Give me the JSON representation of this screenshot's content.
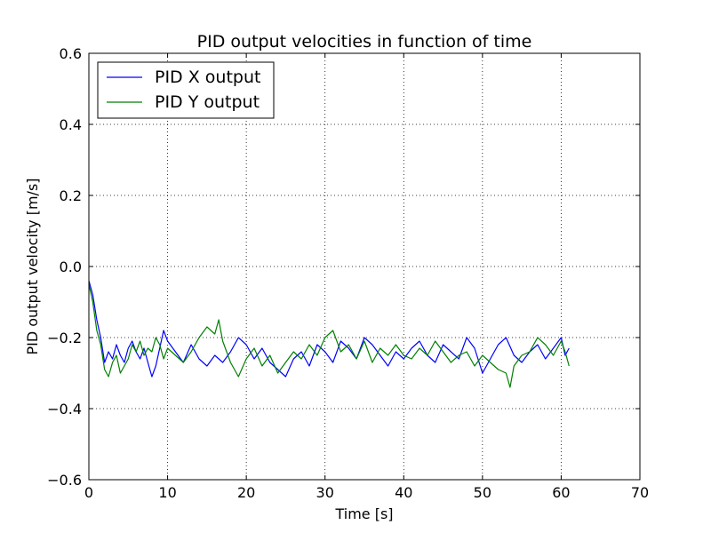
{
  "chart_data": {
    "type": "line",
    "title": "PID output velocities in function of time",
    "xlabel": "Time [s]",
    "ylabel": "PID output velocity [m/s]",
    "xlim": [
      0,
      70
    ],
    "ylim": [
      -0.6,
      0.6
    ],
    "xticks": [
      0,
      10,
      20,
      30,
      40,
      50,
      60,
      70
    ],
    "yticks": [
      -0.6,
      -0.4,
      -0.2,
      0.0,
      0.2,
      0.4,
      0.6
    ],
    "xtick_labels": [
      "0",
      "10",
      "20",
      "30",
      "40",
      "50",
      "60",
      "70"
    ],
    "ytick_labels": [
      "−0.6",
      "−0.4",
      "−0.2",
      "0.0",
      "0.2",
      "0.4",
      "0.6"
    ],
    "grid": true,
    "legend_position": "top-left",
    "series": [
      {
        "name": "PID X output",
        "color": "#0000ff",
        "x": [
          0,
          0.5,
          1,
          1.5,
          2,
          2.5,
          3,
          3.5,
          4,
          4.5,
          5,
          5.5,
          6,
          6.5,
          7,
          7.5,
          8,
          8.5,
          9,
          9.5,
          10,
          11,
          12,
          13,
          14,
          15,
          16,
          17,
          18,
          19,
          20,
          21,
          22,
          23,
          24,
          25,
          26,
          27,
          28,
          29,
          30,
          31,
          32,
          33,
          34,
          35,
          36,
          37,
          38,
          39,
          40,
          41,
          42,
          43,
          44,
          45,
          46,
          47,
          48,
          49,
          50,
          51,
          52,
          53,
          54,
          55,
          56,
          57,
          58,
          59,
          60,
          60.5,
          61
        ],
        "y": [
          -0.04,
          -0.08,
          -0.15,
          -0.2,
          -0.27,
          -0.24,
          -0.26,
          -0.22,
          -0.25,
          -0.27,
          -0.23,
          -0.21,
          -0.24,
          -0.26,
          -0.23,
          -0.27,
          -0.31,
          -0.28,
          -0.23,
          -0.18,
          -0.21,
          -0.24,
          -0.27,
          -0.22,
          -0.26,
          -0.28,
          -0.25,
          -0.27,
          -0.24,
          -0.2,
          -0.22,
          -0.26,
          -0.23,
          -0.27,
          -0.29,
          -0.31,
          -0.26,
          -0.24,
          -0.28,
          -0.22,
          -0.24,
          -0.27,
          -0.21,
          -0.23,
          -0.26,
          -0.2,
          -0.22,
          -0.25,
          -0.28,
          -0.24,
          -0.26,
          -0.23,
          -0.21,
          -0.25,
          -0.27,
          -0.22,
          -0.24,
          -0.26,
          -0.2,
          -0.23,
          -0.3,
          -0.26,
          -0.22,
          -0.2,
          -0.25,
          -0.27,
          -0.24,
          -0.22,
          -0.26,
          -0.23,
          -0.2,
          -0.25,
          -0.23
        ]
      },
      {
        "name": "PID Y output",
        "color": "#008000",
        "x": [
          0,
          0.5,
          1,
          1.5,
          2,
          2.5,
          3,
          3.5,
          4,
          4.5,
          5,
          5.5,
          6,
          6.5,
          7,
          7.5,
          8,
          8.5,
          9,
          9.5,
          10,
          11,
          12,
          13,
          14,
          15,
          16,
          16.5,
          17,
          18,
          19,
          20,
          21,
          22,
          23,
          24,
          25,
          26,
          27,
          28,
          29,
          30,
          31,
          32,
          33,
          34,
          35,
          36,
          37,
          38,
          39,
          40,
          41,
          42,
          43,
          44,
          45,
          46,
          47,
          48,
          49,
          50,
          51,
          52,
          53,
          53.5,
          54,
          55,
          56,
          57,
          58,
          59,
          60,
          60.5,
          61
        ],
        "y": [
          -0.05,
          -0.1,
          -0.18,
          -0.22,
          -0.29,
          -0.31,
          -0.27,
          -0.25,
          -0.3,
          -0.28,
          -0.26,
          -0.22,
          -0.24,
          -0.21,
          -0.25,
          -0.23,
          -0.24,
          -0.2,
          -0.22,
          -0.26,
          -0.23,
          -0.25,
          -0.27,
          -0.24,
          -0.2,
          -0.17,
          -0.19,
          -0.15,
          -0.21,
          -0.27,
          -0.31,
          -0.26,
          -0.23,
          -0.28,
          -0.25,
          -0.3,
          -0.27,
          -0.24,
          -0.26,
          -0.22,
          -0.25,
          -0.2,
          -0.18,
          -0.24,
          -0.22,
          -0.26,
          -0.21,
          -0.27,
          -0.23,
          -0.25,
          -0.22,
          -0.25,
          -0.26,
          -0.23,
          -0.25,
          -0.21,
          -0.24,
          -0.27,
          -0.25,
          -0.24,
          -0.28,
          -0.25,
          -0.27,
          -0.29,
          -0.3,
          -0.34,
          -0.28,
          -0.25,
          -0.24,
          -0.2,
          -0.22,
          -0.25,
          -0.21,
          -0.24,
          -0.28
        ]
      }
    ]
  }
}
